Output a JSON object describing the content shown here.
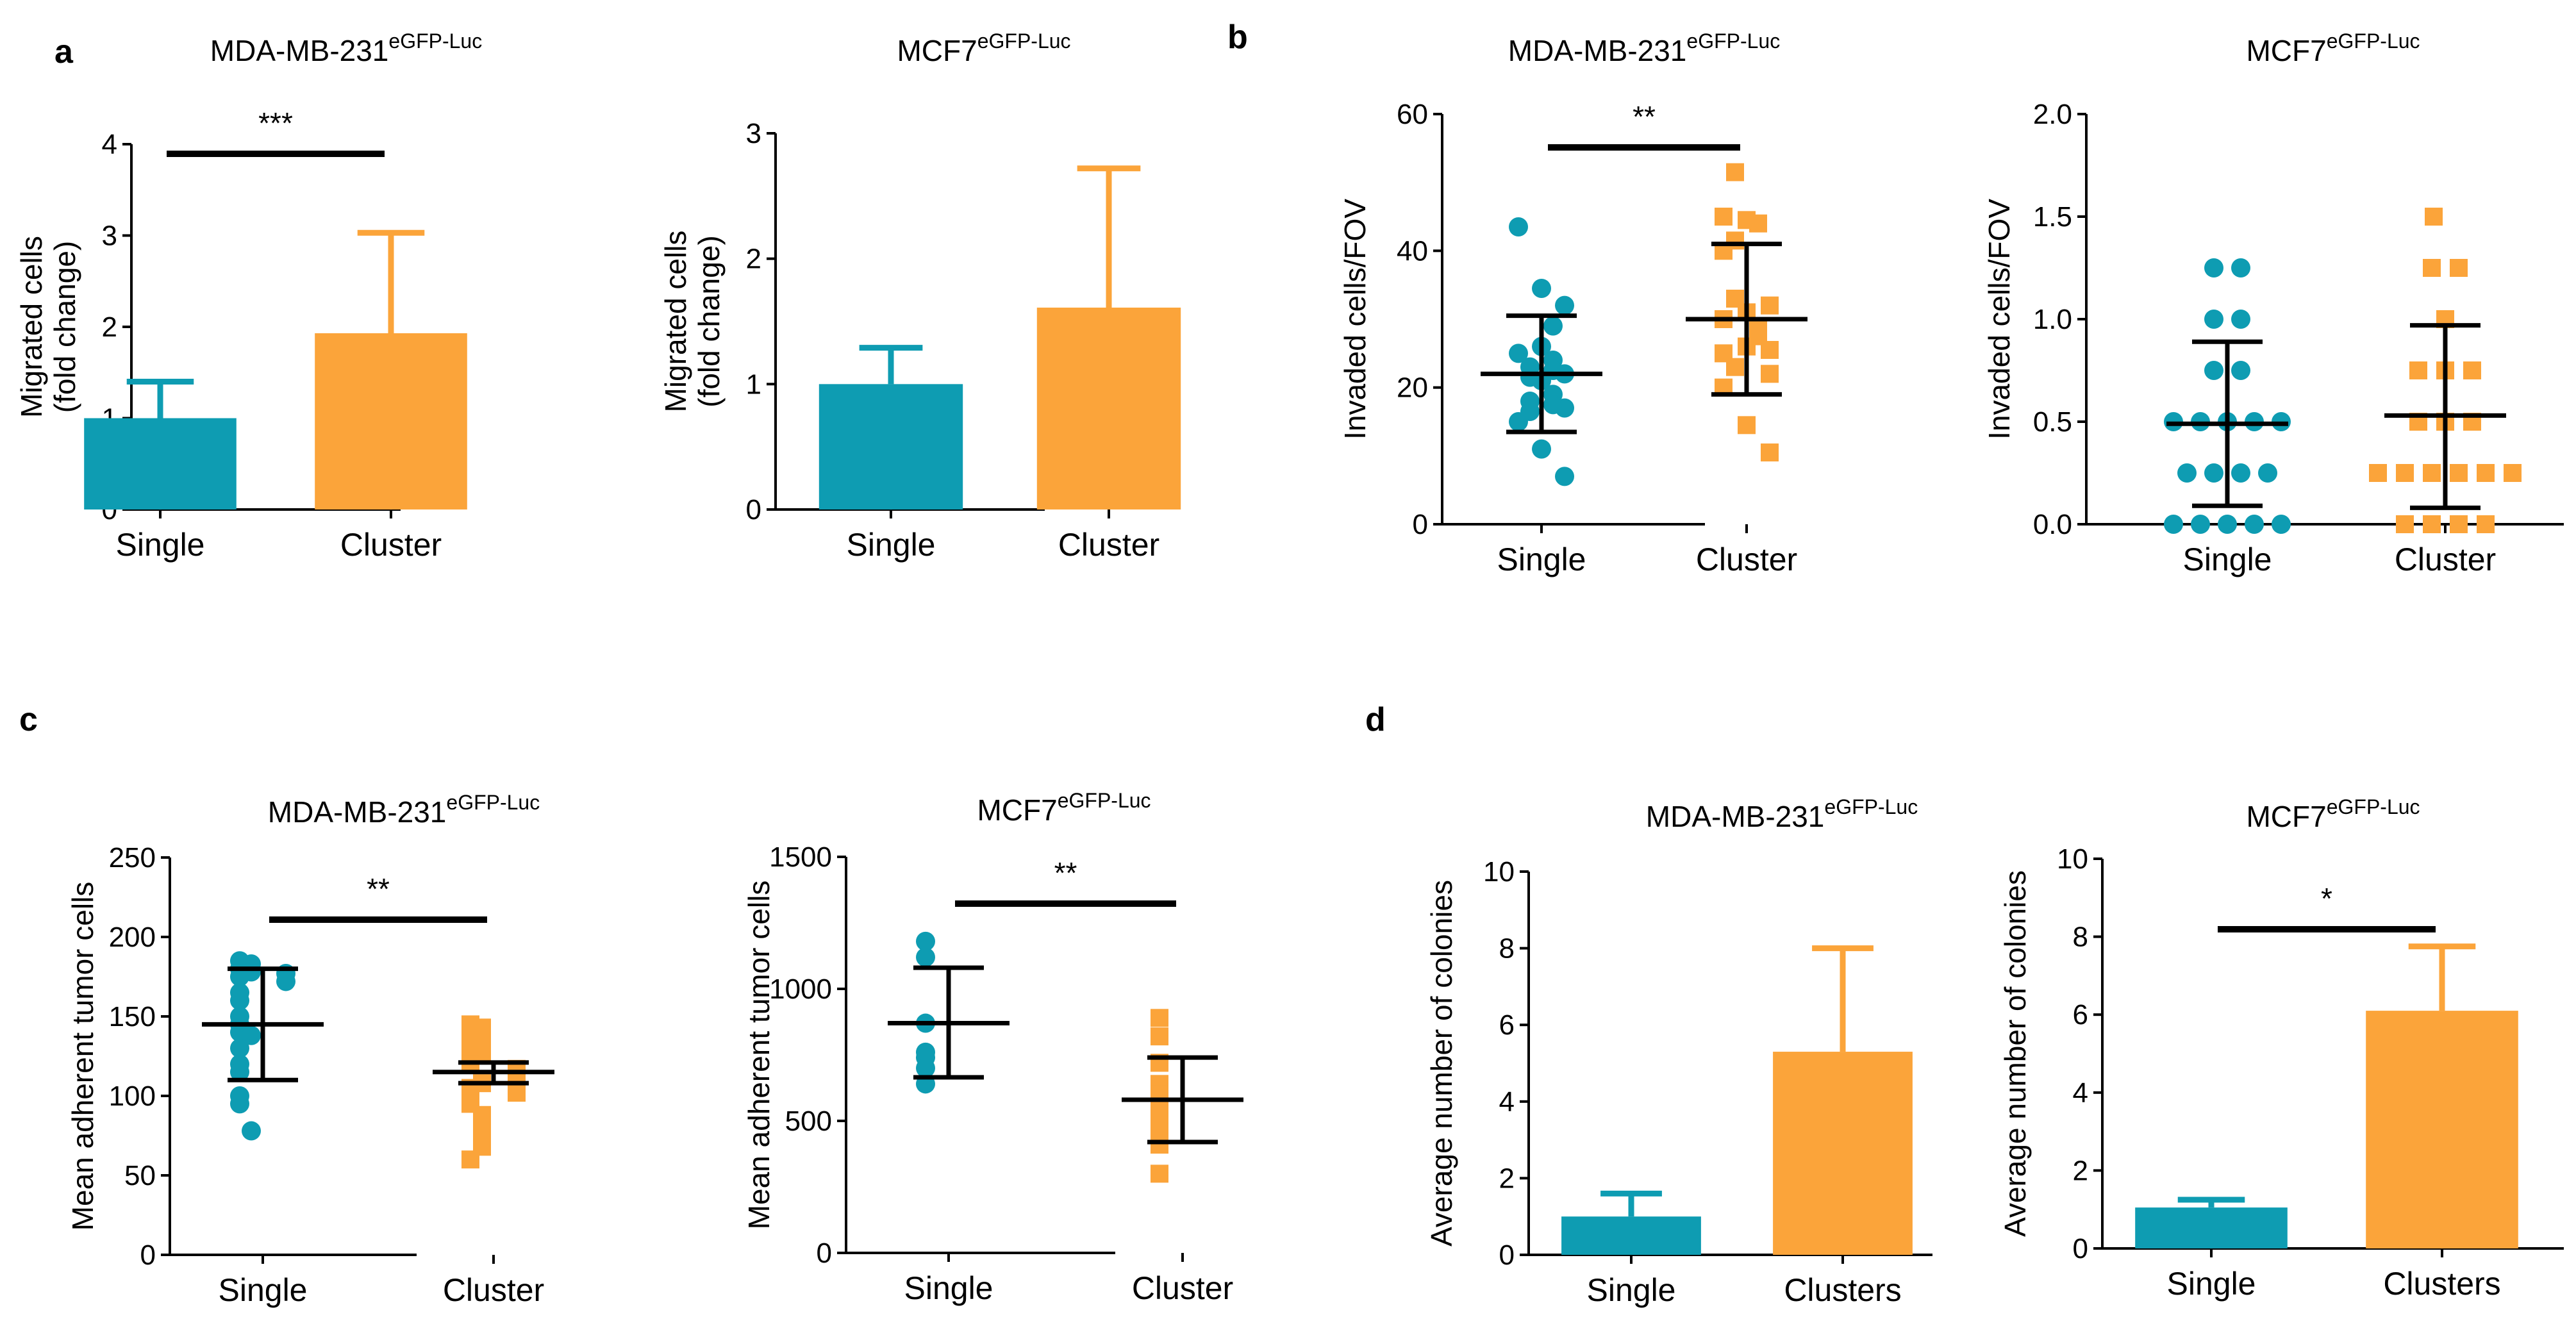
{
  "figure": {
    "panel_labels": [
      "a",
      "b",
      "c",
      "d"
    ]
  },
  "colors": {
    "single": "#0E9CB2",
    "cluster": "#FBA43A",
    "axis": "#000000"
  },
  "chart_data": [
    {
      "id": "a1",
      "panel": "a",
      "type": "bar",
      "title": "MDA-MB-231",
      "title_sup": "eGFP-Luc",
      "ylabel": [
        "Migrated cells",
        "(fold change)"
      ],
      "xlabel": "",
      "categories": [
        "Single",
        "Cluster"
      ],
      "values": [
        1.0,
        1.93
      ],
      "errors": [
        0.4,
        1.1
      ],
      "ylim": [
        0,
        4
      ],
      "yticks": [
        0,
        1,
        2,
        3,
        4
      ],
      "ytick_labels": [
        "0",
        "1",
        "2",
        "3",
        "4"
      ],
      "significance": "***"
    },
    {
      "id": "a2",
      "panel": "a",
      "type": "bar",
      "title": "MCF7",
      "title_sup": "eGFP-Luc",
      "ylabel": [
        "Migrated cells",
        "(fold change)"
      ],
      "xlabel": "",
      "categories": [
        "Single",
        "Cluster"
      ],
      "values": [
        1.0,
        1.61
      ],
      "errors": [
        0.29,
        1.11
      ],
      "ylim": [
        0,
        3
      ],
      "yticks": [
        0,
        1,
        2,
        3
      ],
      "ytick_labels": [
        "0",
        "1",
        "2",
        "3"
      ],
      "significance": ""
    },
    {
      "id": "b1",
      "panel": "b",
      "type": "scatter",
      "title": "MDA-MB-231",
      "title_sup": "eGFP-Luc",
      "ylabel": [
        "Invaded cells/FOV"
      ],
      "xlabel": "",
      "categories": [
        "Single",
        "Cluster"
      ],
      "series": [
        {
          "name": "Single",
          "marker": "circle",
          "points": [
            43.5,
            34.5,
            32,
            29,
            26,
            25,
            24,
            23,
            22.5,
            22,
            21.5,
            21,
            19,
            18,
            17.5,
            17,
            16.5,
            15,
            11,
            7
          ],
          "mean": 22,
          "sd_low": 13.5,
          "sd_high": 30.5
        },
        {
          "name": "Cluster",
          "marker": "square",
          "points": [
            51.5,
            45,
            44.5,
            44,
            41.5,
            40,
            33,
            32,
            31,
            30,
            29,
            27.5,
            26,
            25.5,
            25,
            23,
            22,
            20,
            14.5,
            10.5
          ],
          "mean": 30,
          "sd_low": 19,
          "sd_high": 41
        }
      ],
      "ylim": [
        0,
        60
      ],
      "yticks": [
        0,
        20,
        40,
        60
      ],
      "ytick_labels": [
        "0",
        "20",
        "40",
        "60"
      ],
      "significance": "**"
    },
    {
      "id": "b2",
      "panel": "b",
      "type": "scatter",
      "title": "MCF7",
      "title_sup": "eGFP-Luc",
      "ylabel": [
        "Invaded cells/FOV"
      ],
      "xlabel": "",
      "categories": [
        "Single",
        "Cluster"
      ],
      "series": [
        {
          "name": "Single",
          "marker": "circle",
          "points": [
            1.25,
            1.25,
            1.0,
            1.0,
            0.75,
            0.75,
            0.5,
            0.5,
            0.5,
            0.5,
            0.5,
            0.25,
            0.25,
            0.25,
            0.25,
            0,
            0,
            0,
            0,
            0
          ],
          "mean": 0.49,
          "sd_low": 0.09,
          "sd_high": 0.89
        },
        {
          "name": "Cluster",
          "marker": "square",
          "points": [
            1.5,
            1.25,
            1.25,
            1.0,
            0.75,
            0.75,
            0.75,
            0.5,
            0.5,
            0.5,
            0.25,
            0.25,
            0.25,
            0.25,
            0.25,
            0.25,
            0,
            0,
            0,
            0
          ],
          "mean": 0.53,
          "sd_low": 0.08,
          "sd_high": 0.97
        }
      ],
      "ylim": [
        0,
        2
      ],
      "yticks": [
        0,
        0.5,
        1.0,
        1.5,
        2.0
      ],
      "ytick_labels": [
        "0.0",
        "0.5",
        "1.0",
        "1.5",
        "2.0"
      ],
      "significance": ""
    },
    {
      "id": "c1",
      "panel": "c",
      "type": "scatter",
      "title": "MDA-MB-231",
      "title_sup": "eGFP-Luc",
      "ylabel": [
        "Mean adherent tumor cells"
      ],
      "xlabel": "",
      "categories": [
        "Single",
        "Cluster"
      ],
      "series": [
        {
          "name": "Single",
          "marker": "circle",
          "points": [
            185,
            183,
            180,
            178,
            177,
            175,
            172,
            165,
            160,
            150,
            145,
            140,
            138,
            130,
            120,
            115,
            100,
            95,
            78
          ],
          "mean": 145,
          "sd_low": 110,
          "sd_high": 180
        },
        {
          "name": "Cluster",
          "marker": "square",
          "points": [
            145,
            143,
            140,
            135,
            133,
            130,
            128,
            125,
            120,
            117,
            112,
            108,
            105,
            102,
            95,
            88,
            78,
            68,
            60
          ],
          "mean": 115,
          "sd_low": 108,
          "sd_high": 121
        }
      ],
      "ylim": [
        0,
        250
      ],
      "yticks": [
        0,
        50,
        100,
        150,
        200,
        250
      ],
      "ytick_labels": [
        "0",
        "50",
        "100",
        "150",
        "200",
        "250"
      ],
      "significance": "**"
    },
    {
      "id": "c2",
      "panel": "c",
      "type": "scatter",
      "title": "MCF7",
      "title_sup": "eGFP-Luc",
      "ylabel": [
        "Mean adherent tumor cells"
      ],
      "xlabel": "",
      "categories": [
        "Single",
        "Cluster"
      ],
      "series": [
        {
          "name": "Single",
          "marker": "circle",
          "points": [
            1180,
            1120,
            870,
            760,
            740,
            700,
            640
          ],
          "mean": 870,
          "sd_low": 665,
          "sd_high": 1080
        },
        {
          "name": "Cluster",
          "marker": "square",
          "points": [
            890,
            820,
            720,
            640,
            600,
            580,
            560,
            540,
            500,
            450,
            410,
            300
          ],
          "mean": 580,
          "sd_low": 420,
          "sd_high": 740
        }
      ],
      "ylim": [
        0,
        1500
      ],
      "yticks": [
        0,
        500,
        1000,
        1500
      ],
      "ytick_labels": [
        "0",
        "500",
        "1000",
        "1500"
      ],
      "significance": "**"
    },
    {
      "id": "d1",
      "panel": "d",
      "type": "bar",
      "title": "MDA-MB-231",
      "title_sup": "eGFP-Luc",
      "ylabel": [
        "Average number of colonies"
      ],
      "xlabel": "",
      "categories": [
        "Single",
        "Clusters"
      ],
      "values": [
        1.0,
        5.3
      ],
      "errors": [
        0.6,
        2.7
      ],
      "ylim": [
        0,
        10
      ],
      "yticks": [
        0,
        2,
        4,
        6,
        8,
        10
      ],
      "ytick_labels": [
        "0",
        "2",
        "4",
        "6",
        "8",
        "10"
      ],
      "significance": ""
    },
    {
      "id": "d2",
      "panel": "d",
      "type": "bar",
      "title": "MCF7",
      "title_sup": "eGFP-Luc",
      "ylabel": [
        "Average number of colonies"
      ],
      "xlabel": "",
      "categories": [
        "Single",
        "Clusters"
      ],
      "values": [
        1.05,
        6.1
      ],
      "errors": [
        0.2,
        1.65
      ],
      "ylim": [
        0,
        10
      ],
      "yticks": [
        0,
        2,
        4,
        6,
        8,
        10
      ],
      "ytick_labels": [
        "0",
        "2",
        "4",
        "6",
        "8",
        "10"
      ],
      "significance": "*"
    }
  ]
}
